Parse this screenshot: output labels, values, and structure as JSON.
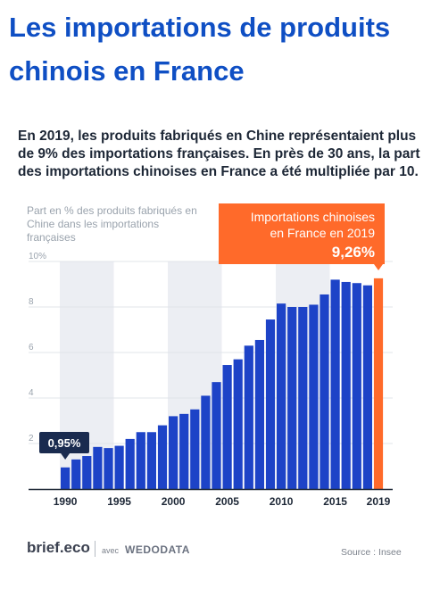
{
  "header": {
    "title": "Les importations de produits chinois en France",
    "intro": "En 2019, les produits fabriqués en Chine représentaient plus de 9% des importations françaises. En près de 30 ans, la part des importations chinoises en France a été multipliée par 10."
  },
  "chart_data": {
    "type": "bar",
    "subtitle": "Part en % des produits fabriqués en Chine dans les importations françaises",
    "categories": [
      "1990",
      "1991",
      "1992",
      "1993",
      "1994",
      "1995",
      "1996",
      "1997",
      "1998",
      "1999",
      "2000",
      "2001",
      "2002",
      "2003",
      "2004",
      "2005",
      "2006",
      "2007",
      "2008",
      "2009",
      "2010",
      "2011",
      "2012",
      "2013",
      "2014",
      "2015",
      "2016",
      "2017",
      "2018",
      "2019"
    ],
    "x_tick_labels": [
      "1990",
      "1995",
      "2000",
      "2005",
      "2010",
      "2015",
      "2019"
    ],
    "series": [
      {
        "values": [
          0.95,
          1.3,
          1.45,
          1.85,
          1.8,
          1.9,
          2.2,
          2.5,
          2.5,
          2.8,
          3.2,
          3.3,
          3.5,
          4.1,
          4.7,
          5.45,
          5.7,
          6.3,
          6.55,
          7.45,
          8.15,
          8.0,
          8.0,
          8.1,
          8.55,
          9.2,
          9.1,
          9.05,
          8.95,
          9.26
        ]
      }
    ],
    "highlight_color": "#ff6a2a",
    "bar_color": "#1d43c7",
    "ylim": [
      0,
      10
    ],
    "y_ticks": [
      "2",
      "4",
      "6",
      "8",
      "10%"
    ],
    "grid": true,
    "annotations": [
      {
        "label": "0,95%",
        "category": "1990"
      },
      {
        "label": "Importations chinoises en France en 2019",
        "value_label": "9,26%",
        "category": "2019"
      }
    ]
  },
  "footer": {
    "logo": "brief.eco",
    "avec": "avec",
    "brand": "WEDODATA",
    "source": "Source : Insee"
  }
}
